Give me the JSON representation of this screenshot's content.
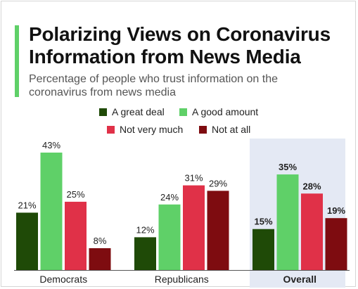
{
  "title_line1": "Polarizing Views on Coronavirus",
  "title_line2": "Information from News Media",
  "subtitle_line1": "Percentage of people who trust information on the",
  "subtitle_line2": "coronavirus from news media",
  "colors": {
    "accent": "#5fd068",
    "a_great_deal": "#1f4a07",
    "a_good_amount": "#5fd068",
    "not_very_much": "#e03148",
    "not_at_all": "#7e0c10",
    "highlight_panel": "#e4e9f4",
    "axis": "#555555"
  },
  "chart_data": {
    "type": "bar",
    "title": "Polarizing Views on Coronavirus Information from News Media",
    "subtitle": "Percentage of people who trust information on the coronavirus from news media",
    "categories": [
      "Democrats",
      "Republicans",
      "Overall"
    ],
    "series": [
      {
        "name": "A great deal",
        "values": [
          21,
          12,
          15
        ],
        "labels": [
          "21%",
          "12%",
          "15%"
        ]
      },
      {
        "name": "A good amount",
        "values": [
          43,
          24,
          35
        ],
        "labels": [
          "43%",
          "24%",
          "35%"
        ]
      },
      {
        "name": "Not very much",
        "values": [
          25,
          31,
          28
        ],
        "labels": [
          "25%",
          "31%",
          "28%"
        ]
      },
      {
        "name": "Not at all",
        "values": [
          8,
          29,
          19
        ],
        "labels": [
          "8%",
          "29%",
          "19%"
        ]
      }
    ],
    "ylim": [
      0,
      43
    ],
    "highlighted_category": "Overall",
    "legend_position": "top",
    "grid": false
  }
}
